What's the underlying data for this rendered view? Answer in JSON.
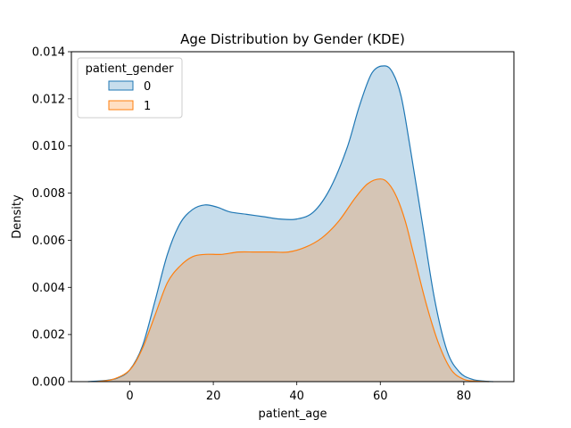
{
  "chart_data": {
    "type": "area",
    "title": "Age Distribution by Gender (KDE)",
    "xlabel": "patient_age",
    "ylabel": "Density",
    "xlim": [
      -14,
      92
    ],
    "ylim": [
      0,
      0.014
    ],
    "xticks": [
      0,
      20,
      40,
      60,
      80
    ],
    "yticks": [
      0.0,
      0.002,
      0.004,
      0.006,
      0.008,
      0.01,
      0.012,
      0.014
    ],
    "ytick_labels": [
      "0.000",
      "0.002",
      "0.004",
      "0.006",
      "0.008",
      "0.010",
      "0.012",
      "0.014"
    ],
    "grid": false,
    "legend": {
      "title": "patient_gender",
      "placement": "top-left"
    },
    "series": [
      {
        "name": "0",
        "color": "#1f77b4",
        "fill": "rgba(31,119,180,0.25)",
        "x": [
          -10,
          -6,
          -3,
          0,
          3,
          6,
          9,
          12,
          15,
          18,
          21,
          24,
          28,
          32,
          36,
          40,
          44,
          48,
          52,
          55,
          58,
          61,
          63,
          65,
          67,
          70,
          73,
          76,
          79,
          82,
          85,
          87
        ],
        "y": [
          0.0,
          5e-05,
          0.00015,
          0.0005,
          0.0015,
          0.0034,
          0.0054,
          0.0067,
          0.0073,
          0.0075,
          0.0074,
          0.0072,
          0.0071,
          0.007,
          0.0069,
          0.0069,
          0.0072,
          0.0082,
          0.0099,
          0.0117,
          0.0131,
          0.0134,
          0.0131,
          0.0121,
          0.0101,
          0.0068,
          0.0035,
          0.0013,
          0.0004,
          0.0001,
          2e-05,
          0.0
        ]
      },
      {
        "name": "1",
        "color": "#ff7f0e",
        "fill": "rgba(255,127,14,0.25)",
        "x": [
          -8,
          -4,
          0,
          3,
          6,
          9,
          12,
          15,
          18,
          22,
          26,
          30,
          34,
          38,
          42,
          46,
          50,
          54,
          57,
          60,
          62,
          64,
          66,
          68,
          71,
          74,
          77,
          80,
          83,
          86
        ],
        "y": [
          0.0,
          0.0001,
          0.0005,
          0.0014,
          0.0028,
          0.0042,
          0.0049,
          0.0053,
          0.0054,
          0.0054,
          0.0055,
          0.0055,
          0.0055,
          0.0055,
          0.0057,
          0.0061,
          0.0068,
          0.0078,
          0.0084,
          0.0086,
          0.0084,
          0.0078,
          0.0068,
          0.0054,
          0.0033,
          0.0016,
          0.0005,
          0.0001,
          2e-05,
          0.0
        ]
      }
    ]
  }
}
